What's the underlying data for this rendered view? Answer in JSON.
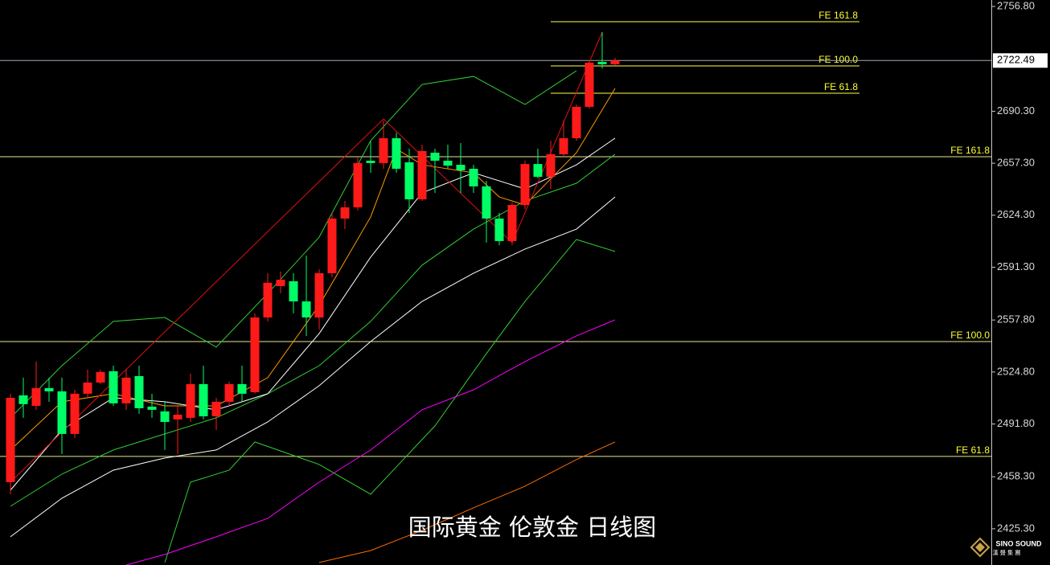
{
  "chart_data": {
    "type": "candlestick",
    "title": "国际黄金 伦敦金 日线图",
    "up_color": "#ff1a1a",
    "down_color": "#00ff66",
    "open": [
      2454.9,
      2510.0,
      2503.3,
      2514.6,
      2512.5,
      2485.5,
      2511.0,
      2518.1,
      2525.3,
      2504.9,
      2522.2,
      2502.8,
      2499.8,
      2494.7,
      2495.7,
      2517.1,
      2496.7,
      2505.9,
      2517.1,
      2512.0,
      2559.4,
      2579.3,
      2582.4,
      2569.6,
      2559.4,
      2587.5,
      2622.2,
      2629.3,
      2658.9,
      2657.4,
      2673.2,
      2657.9,
      2634.4,
      2664.0,
      2658.9,
      2656.3,
      2653.8,
      2642.6,
      2622.2,
      2607.9,
      2630.8,
      2656.8,
      2648.7,
      2663.0,
      2673.2,
      2693.1,
      2721.6,
      2720.1
    ],
    "high": [
      2511.0,
      2521.2,
      2531.4,
      2521.2,
      2521.2,
      2513.5,
      2526.3,
      2526.3,
      2528.8,
      2526.3,
      2528.8,
      2511.0,
      2505.9,
      2503.3,
      2523.7,
      2528.8,
      2508.4,
      2518.6,
      2528.8,
      2562.0,
      2587.5,
      2588.5,
      2587.5,
      2598.7,
      2590.0,
      2625.7,
      2633.4,
      2661.4,
      2671.6,
      2684.4,
      2676.7,
      2666.5,
      2669.1,
      2666.5,
      2669.1,
      2670.1,
      2656.3,
      2646.1,
      2625.7,
      2632.4,
      2658.9,
      2666.5,
      2671.6,
      2684.4,
      2694.6,
      2722.6,
      2740.5,
      2724.2
    ],
    "low": [
      2447.2,
      2495.7,
      2500.8,
      2505.9,
      2472.7,
      2482.9,
      2508.4,
      2517.1,
      2503.3,
      2500.8,
      2498.2,
      2495.7,
      2475.3,
      2472.7,
      2493.1,
      2494.7,
      2488.0,
      2503.3,
      2505.9,
      2511.0,
      2556.9,
      2574.7,
      2562.0,
      2547.7,
      2551.8,
      2584.9,
      2615.5,
      2627.3,
      2651.2,
      2653.8,
      2651.2,
      2625.7,
      2633.4,
      2638.5,
      2653.8,
      2638.5,
      2638.5,
      2606.9,
      2605.3,
      2605.3,
      2628.3,
      2647.7,
      2641.0,
      2661.4,
      2671.6,
      2692.0,
      2717.5,
      2719.6
    ],
    "close": [
      2508.4,
      2504.4,
      2514.6,
      2512.5,
      2485.5,
      2511.0,
      2518.1,
      2524.8,
      2504.9,
      2521.2,
      2501.8,
      2500.8,
      2493.1,
      2497.7,
      2517.1,
      2496.7,
      2505.9,
      2517.1,
      2511.0,
      2559.4,
      2581.4,
      2583.4,
      2569.6,
      2559.4,
      2587.5,
      2622.2,
      2629.3,
      2657.4,
      2657.4,
      2673.2,
      2653.8,
      2634.4,
      2665.0,
      2658.9,
      2655.8,
      2652.8,
      2642.6,
      2622.2,
      2607.9,
      2630.8,
      2656.8,
      2648.7,
      2663.0,
      2673.2,
      2693.1,
      2721.1,
      2720.1,
      2722.49
    ],
    "series": [
      {
        "color": "#33cc33",
        "x": [
          0,
          4,
          8,
          12,
          16,
          20,
          24,
          28,
          32,
          36,
          40,
          44
        ],
        "values": [
          2495.7,
          2528.8,
          2556.9,
          2559.4,
          2540.6,
          2574.7,
          2610.4,
          2671.6,
          2707.3,
          2712.4,
          2694.6,
          2716.0
        ]
      },
      {
        "color": "#33cc33",
        "x": [
          0,
          4,
          8,
          12,
          16,
          20,
          24,
          28,
          32,
          36,
          40,
          44,
          47
        ],
        "values": [
          2439.6,
          2460.0,
          2475.3,
          2485.5,
          2495.7,
          2511.0,
          2528.8,
          2556.9,
          2592.6,
          2615.5,
          2633.4,
          2644.6,
          2663.0
        ]
      },
      {
        "color": "#33cc33",
        "x": [
          12,
          14,
          17,
          19,
          24,
          28,
          33,
          37,
          40,
          44,
          47
        ],
        "values": [
          2403.9,
          2454.9,
          2462.5,
          2480.4,
          2466.1,
          2447.2,
          2490.6,
          2536.5,
          2569.6,
          2608.9,
          2601.3
        ]
      },
      {
        "color": "#ff9900",
        "x": [
          0,
          4,
          8,
          12,
          16,
          20,
          24,
          28,
          30,
          32,
          36,
          38,
          40,
          44,
          47
        ],
        "values": [
          2475.3,
          2505.9,
          2511.0,
          2503.3,
          2503.3,
          2521.2,
          2567.1,
          2623.2,
          2666.5,
          2656.3,
          2651.2,
          2635.9,
          2630.8,
          2664.0,
          2704.8
        ]
      },
      {
        "color": "#ffffff",
        "x": [
          0,
          4,
          8,
          12,
          16,
          20,
          24,
          28,
          32,
          36,
          40,
          44,
          47
        ],
        "values": [
          2449.8,
          2488.0,
          2508.4,
          2505.9,
          2500.8,
          2511.0,
          2549.2,
          2597.7,
          2638.5,
          2651.2,
          2641.0,
          2656.3,
          2673.2
        ]
      },
      {
        "color": "#ffffff",
        "x": [
          0,
          4,
          8,
          12,
          16,
          20,
          24,
          28,
          32,
          36,
          40,
          44,
          47
        ],
        "values": [
          2420.2,
          2444.7,
          2462.5,
          2470.2,
          2475.3,
          2493.1,
          2516.1,
          2544.1,
          2569.6,
          2587.5,
          2602.8,
          2615.5,
          2635.9
        ]
      },
      {
        "color": "#ff00ff",
        "x": [
          9,
          12,
          16,
          20,
          24,
          28,
          32,
          36,
          40,
          44,
          47
        ],
        "values": [
          2402.3,
          2409.0,
          2420.2,
          2431.9,
          2454.9,
          2475.3,
          2500.8,
          2513.5,
          2531.4,
          2547.7,
          2557.9
        ]
      },
      {
        "color": "#ff6a00",
        "x": [
          24,
          28,
          32,
          36,
          40,
          44,
          47
        ],
        "values": [
          2403.9,
          2411.5,
          2424.3,
          2438.6,
          2452.3,
          2469.2,
          2480.4
        ]
      }
    ],
    "trend_lines": [
      {
        "color": "#e01010",
        "x": [
          0,
          29,
          39,
          46
        ],
        "values": [
          2454.9,
          2685.4,
          2606.9,
          2740.5
        ]
      }
    ],
    "levels": [
      {
        "label": "FE 161.8",
        "value": 2661.4
      },
      {
        "label": "FE 100.0",
        "value": 2544.1
      },
      {
        "label": "FE 61.8",
        "value": 2471.2
      },
      {
        "label": "FE 161.8",
        "value": 2747.1,
        "x_range": [
          42,
          66
        ]
      },
      {
        "label": "FE 100.0",
        "value": 2719.1,
        "x_range": [
          42,
          66
        ]
      },
      {
        "label": "FE 61.8",
        "value": 2701.7,
        "x_range": [
          42,
          66
        ]
      }
    ],
    "last_price": 2722.49,
    "ylim": [
      2402.3,
      2760.9
    ],
    "yticks": [
      {
        "value": 2756.8,
        "label": "2756.80"
      },
      {
        "value": 2690.3,
        "label": "2690.30"
      },
      {
        "value": 2657.3,
        "label": "2657.30"
      },
      {
        "value": 2624.3,
        "label": "2624.30"
      },
      {
        "value": 2591.3,
        "label": "2591.30"
      },
      {
        "value": 2557.8,
        "label": "2557.80"
      },
      {
        "value": 2524.8,
        "label": "2524.80"
      },
      {
        "value": 2491.8,
        "label": "2491.80"
      },
      {
        "value": 2458.3,
        "label": "2458.30"
      },
      {
        "value": 2425.3,
        "label": "2425.30"
      }
    ]
  },
  "logo": {
    "name": "SINO SOUND",
    "subtitle": "漢 聲 集 團"
  }
}
